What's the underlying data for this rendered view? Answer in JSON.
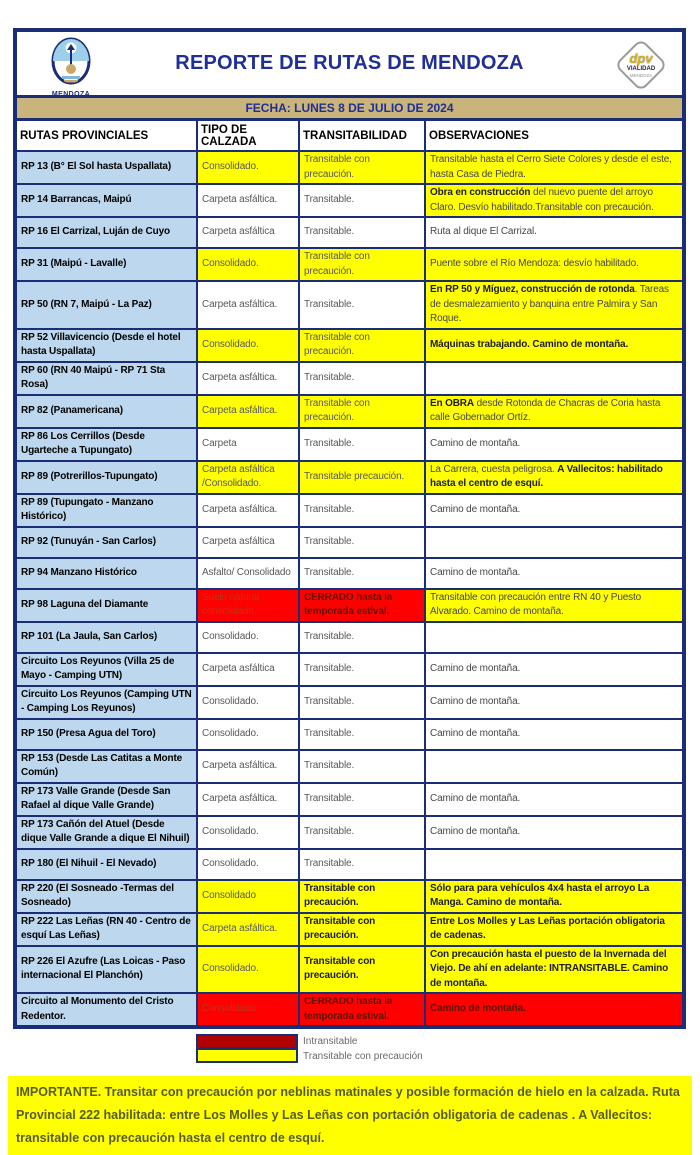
{
  "colors": {
    "navy": "#1C2D78",
    "titleblue": "#1F2F96",
    "tan": "#C9B47C",
    "cellblue": "#BDD7EE",
    "yellow": "#FFFF00",
    "red": "#FF0000",
    "legendred": "#B00000",
    "noticetext": "#565D1D"
  },
  "header": {
    "title": "REPORTE DE RUTAS DE MENDOZA",
    "left_logo_label": "MENDOZA",
    "right_logo": {
      "brand": "dpv",
      "line1": "VIALIDAD",
      "line2": "MENDOZA"
    }
  },
  "datebar": "FECHA: LUNES 8 DE JULIO DE 2024",
  "table": {
    "columns": [
      "RUTAS PROVINCIALES",
      "TIPO DE CALZADA",
      "TRANSITABILIDAD",
      "OBSERVACIONES"
    ],
    "rows": [
      {
        "name": "RP 13 (B° El Sol hasta Uspallata)",
        "calzada": {
          "bg": "y",
          "segs": [
            {
              "t": "Consolidado.",
              "b": false
            }
          ]
        },
        "transitabilidad": {
          "bg": "y",
          "segs": [
            {
              "t": "Transitable con precaución.",
              "b": false
            }
          ]
        },
        "observaciones": {
          "bg": "y",
          "segs": [
            {
              "t": "Transitable hasta el Cerro Siete Colores y desde el este, hasta Casa de Piedra.",
              "b": false
            }
          ]
        }
      },
      {
        "name": "RP 14 Barrancas, Maipú",
        "calzada": {
          "bg": "w",
          "segs": [
            {
              "t": "Carpeta asfáltica.",
              "b": false
            }
          ]
        },
        "transitabilidad": {
          "bg": "w",
          "segs": [
            {
              "t": "Transitable.",
              "b": false
            }
          ]
        },
        "observaciones": {
          "bg": "y",
          "segs": [
            {
              "t": "Obra en construcción",
              "b": true
            },
            {
              "t": " del nuevo puente del arroyo Claro. Desvío habilitado.Transitable con precaución.",
              "b": false
            }
          ]
        }
      },
      {
        "name": "RP 16 El Carrizal, Luján de Cuyo",
        "calzada": {
          "bg": "w",
          "segs": [
            {
              "t": "Carpeta asfáltica",
              "b": false
            }
          ]
        },
        "transitabilidad": {
          "bg": "w",
          "segs": [
            {
              "t": "Transitable.",
              "b": false
            }
          ]
        },
        "observaciones": {
          "bg": "w",
          "segs": [
            {
              "t": "Ruta al dique El Carrizal.",
              "b": false
            }
          ]
        }
      },
      {
        "name": "RP 31 (Maipú - Lavalle)",
        "calzada": {
          "bg": "y",
          "segs": [
            {
              "t": "Consolidado.",
              "b": false
            }
          ]
        },
        "transitabilidad": {
          "bg": "y",
          "segs": [
            {
              "t": "Transitable con precaución.",
              "b": false
            }
          ]
        },
        "observaciones": {
          "bg": "y",
          "segs": [
            {
              "t": "Puente sobre el Río Mendoza: desvío habilitado.",
              "b": false
            }
          ]
        }
      },
      {
        "name": "RP 50 (RN 7, Maipú - La Paz)",
        "calzada": {
          "bg": "w",
          "segs": [
            {
              "t": "Carpeta asfáltica.",
              "b": false
            }
          ]
        },
        "transitabilidad": {
          "bg": "w",
          "segs": [
            {
              "t": "Transitable.",
              "b": false
            }
          ]
        },
        "observaciones": {
          "bg": "y",
          "segs": [
            {
              "t": "En RP 50 y Míguez, construcción de rotonda",
              "b": true
            },
            {
              "t": ".  Tareas de desmalezamiento y banquina entre Palmira y San Roque.",
              "b": false
            }
          ]
        }
      },
      {
        "name": "RP 52 Villavicencio (Desde el hotel hasta Uspallata)",
        "calzada": {
          "bg": "y",
          "segs": [
            {
              "t": "Consolidado.",
              "b": false
            }
          ]
        },
        "transitabilidad": {
          "bg": "y",
          "segs": [
            {
              "t": "Transitable con precaución.",
              "b": false
            }
          ]
        },
        "observaciones": {
          "bg": "y",
          "segs": [
            {
              "t": "Máquinas trabajando. Camino de montaña.",
              "b": true
            }
          ]
        }
      },
      {
        "name": "RP 60 (RN 40 Maipú - RP 71 Sta Rosa)",
        "calzada": {
          "bg": "w",
          "segs": [
            {
              "t": "Carpeta asfáltica.",
              "b": false
            }
          ]
        },
        "transitabilidad": {
          "bg": "w",
          "segs": [
            {
              "t": "Transitable.",
              "b": false
            }
          ]
        },
        "observaciones": {
          "bg": "w",
          "segs": []
        }
      },
      {
        "name": "RP 82 (Panamericana)",
        "calzada": {
          "bg": "y",
          "segs": [
            {
              "t": "Carpeta asfáltica.",
              "b": false
            }
          ]
        },
        "transitabilidad": {
          "bg": "y",
          "segs": [
            {
              "t": "Transitable con precaución.",
              "b": false
            }
          ]
        },
        "observaciones": {
          "bg": "y",
          "segs": [
            {
              "t": "En OBRA",
              "b": true
            },
            {
              "t": " desde Rotonda de Chacras de Coria hasta calle Gobernador Ortíz.",
              "b": false
            }
          ]
        }
      },
      {
        "name": "RP 86 Los Cerrillos (Desde Ugarteche a Tupungato)",
        "calzada": {
          "bg": "w",
          "segs": [
            {
              "t": "Carpeta",
              "b": false
            }
          ]
        },
        "transitabilidad": {
          "bg": "w",
          "segs": [
            {
              "t": "Transitable.",
              "b": false
            }
          ]
        },
        "observaciones": {
          "bg": "w",
          "segs": [
            {
              "t": "Camino de montaña.",
              "b": false
            }
          ]
        }
      },
      {
        "name": "RP 89 (Potrerillos-Tupungato)",
        "calzada": {
          "bg": "y",
          "segs": [
            {
              "t": "Carpeta asfáltica /Consolidado.",
              "b": false
            }
          ]
        },
        "transitabilidad": {
          "bg": "y",
          "segs": [
            {
              "t": "Transitable precaución.",
              "b": false
            }
          ]
        },
        "observaciones": {
          "bg": "y",
          "segs": [
            {
              "t": "La Carrera, cuesta peligrosa. ",
              "b": false
            },
            {
              "t": "A Vallecitos: habilitado hasta el centro de esquí.",
              "b": true
            }
          ]
        }
      },
      {
        "name": "RP 89 (Tupungato - Manzano Histórico)",
        "calzada": {
          "bg": "w",
          "segs": [
            {
              "t": "Carpeta asfáltica.",
              "b": false
            }
          ]
        },
        "transitabilidad": {
          "bg": "w",
          "segs": [
            {
              "t": "Transitable.",
              "b": false
            }
          ]
        },
        "observaciones": {
          "bg": "w",
          "segs": [
            {
              "t": "Camino de montaña.",
              "b": false
            }
          ]
        }
      },
      {
        "name": "RP 92 (Tunuyán - San Carlos)",
        "calzada": {
          "bg": "w",
          "segs": [
            {
              "t": "Carpeta asfáltica",
              "b": false
            }
          ]
        },
        "transitabilidad": {
          "bg": "w",
          "segs": [
            {
              "t": "Transitable.",
              "b": false
            }
          ]
        },
        "observaciones": {
          "bg": "w",
          "segs": []
        }
      },
      {
        "name": "RP 94 Manzano Histórico",
        "calzada": {
          "bg": "w",
          "segs": [
            {
              "t": "Asfalto/ Consolidado",
              "b": false
            }
          ]
        },
        "transitabilidad": {
          "bg": "w",
          "segs": [
            {
              "t": "Transitable.",
              "b": false
            }
          ]
        },
        "observaciones": {
          "bg": "w",
          "segs": [
            {
              "t": "Camino de montaña.",
              "b": false
            }
          ]
        }
      },
      {
        "name": "RP 98 Laguna del Diamante",
        "calzada": {
          "bg": "r",
          "segs": [
            {
              "t": "Suelo natural consolidado.",
              "b": false
            }
          ]
        },
        "transitabilidad": {
          "bg": "r",
          "segs": [
            {
              "t": "CERRADO hasta la temporada estival.",
              "b": true
            }
          ]
        },
        "observaciones": {
          "bg": "y",
          "segs": [
            {
              "t": "Transitable con precaución entre RN 40 y Puesto Alvarado. Camino de montaña.",
              "b": false
            }
          ]
        }
      },
      {
        "name": "RP 101 (La Jaula, San Carlos)",
        "calzada": {
          "bg": "w",
          "segs": [
            {
              "t": "Consolidado.",
              "b": false
            }
          ]
        },
        "transitabilidad": {
          "bg": "w",
          "segs": [
            {
              "t": "Transitable.",
              "b": false
            }
          ]
        },
        "observaciones": {
          "bg": "w",
          "segs": []
        }
      },
      {
        "name": "Circuito Los Reyunos (Villa 25 de Mayo - Camping UTN)",
        "calzada": {
          "bg": "w",
          "segs": [
            {
              "t": "Carpeta asfáltica",
              "b": false
            }
          ]
        },
        "transitabilidad": {
          "bg": "w",
          "segs": [
            {
              "t": "Transitable.",
              "b": false
            }
          ]
        },
        "observaciones": {
          "bg": "w",
          "segs": [
            {
              "t": "Camino de montaña.",
              "b": false
            }
          ]
        }
      },
      {
        "name": "Circuito Los Reyunos (Camping UTN - Camping Los Reyunos)",
        "calzada": {
          "bg": "w",
          "segs": [
            {
              "t": "Consolidado.",
              "b": false
            }
          ]
        },
        "transitabilidad": {
          "bg": "w",
          "segs": [
            {
              "t": "Transitable.",
              "b": false
            }
          ]
        },
        "observaciones": {
          "bg": "w",
          "segs": [
            {
              "t": "Camino de montaña.",
              "b": false
            }
          ]
        }
      },
      {
        "name": "RP 150 (Presa Agua del Toro)",
        "calzada": {
          "bg": "w",
          "segs": [
            {
              "t": "Consolidado.",
              "b": false
            }
          ]
        },
        "transitabilidad": {
          "bg": "w",
          "segs": [
            {
              "t": "Transitable.",
              "b": false
            }
          ]
        },
        "observaciones": {
          "bg": "w",
          "segs": [
            {
              "t": "Camino de montaña.",
              "b": false
            }
          ]
        }
      },
      {
        "name": "RP 153 (Desde Las Catitas a Monte Común)",
        "calzada": {
          "bg": "w",
          "segs": [
            {
              "t": "Carpeta asfáltica.",
              "b": false
            }
          ]
        },
        "transitabilidad": {
          "bg": "w",
          "segs": [
            {
              "t": "Transitable.",
              "b": false
            }
          ]
        },
        "observaciones": {
          "bg": "w",
          "segs": []
        }
      },
      {
        "name": "RP 173  Valle Grande (Desde San Rafael al dique Valle Grande)",
        "calzada": {
          "bg": "w",
          "segs": [
            {
              "t": "Carpeta asfáltica.",
              "b": false
            }
          ]
        },
        "transitabilidad": {
          "bg": "w",
          "segs": [
            {
              "t": "Transitable.",
              "b": false
            }
          ]
        },
        "observaciones": {
          "bg": "w",
          "segs": [
            {
              "t": "Camino de montaña.",
              "b": false
            }
          ]
        }
      },
      {
        "name": "RP 173 Cañón del Atuel (Desde dique Valle Grande a dique El Nihuil)",
        "calzada": {
          "bg": "w",
          "segs": [
            {
              "t": "Consolidado.",
              "b": false
            }
          ]
        },
        "transitabilidad": {
          "bg": "w",
          "segs": [
            {
              "t": "Transitable.",
              "b": false
            }
          ]
        },
        "observaciones": {
          "bg": "w",
          "segs": [
            {
              "t": "Camino de montaña.",
              "b": false
            }
          ]
        }
      },
      {
        "name": "RP 180 (El Nihuil - El Nevado)",
        "calzada": {
          "bg": "w",
          "segs": [
            {
              "t": "Consolidado.",
              "b": false
            }
          ]
        },
        "transitabilidad": {
          "bg": "w",
          "segs": [
            {
              "t": "Transitable.",
              "b": false
            }
          ]
        },
        "observaciones": {
          "bg": "w",
          "segs": []
        }
      },
      {
        "name": "RP 220 (El Sosneado -Termas del Sosneado)",
        "calzada": {
          "bg": "y",
          "segs": [
            {
              "t": "Consolidado",
              "b": false
            }
          ]
        },
        "transitabilidad": {
          "bg": "y",
          "segs": [
            {
              "t": "Transitable con precaución.",
              "b": true
            }
          ]
        },
        "observaciones": {
          "bg": "y",
          "segs": [
            {
              "t": "Sólo para para vehículos 4x4 hasta el arroyo La Manga. Camino de montaña.",
              "b": true
            }
          ]
        }
      },
      {
        "name": "RP 222 Las Leñas (RN 40 - Centro de esquí Las Leñas)",
        "calzada": {
          "bg": "y",
          "segs": [
            {
              "t": "Carpeta asfáltica.",
              "b": false
            }
          ]
        },
        "transitabilidad": {
          "bg": "y",
          "segs": [
            {
              "t": "Transitable con precaución.",
              "b": true
            }
          ]
        },
        "observaciones": {
          "bg": "y",
          "segs": [
            {
              "t": "Entre Los Molles y Las Leñas portación obligatoria de cadenas.",
              "b": true
            }
          ]
        }
      },
      {
        "name": "RP 226 El Azufre (Las Loicas - Paso internacional El Planchón)",
        "calzada": {
          "bg": "y",
          "segs": [
            {
              "t": "Consolidado.",
              "b": false
            }
          ]
        },
        "transitabilidad": {
          "bg": "y",
          "segs": [
            {
              "t": "Transitable con precaución.",
              "b": true
            }
          ]
        },
        "observaciones": {
          "bg": "y",
          "segs": [
            {
              "t": "Con precaución hasta el puesto de la Invernada del Viejo. De ahí en adelante: INTRANSITABLE. Camino de montaña.",
              "b": true
            }
          ]
        }
      },
      {
        "name": "Circuito al Monumento del Cristo Redentor.",
        "calzada": {
          "bg": "r",
          "segs": [
            {
              "t": "Consolidado.",
              "b": false
            }
          ]
        },
        "transitabilidad": {
          "bg": "r",
          "segs": [
            {
              "t": "CERRADO hasta la temporada estival.",
              "b": true
            }
          ]
        },
        "observaciones": {
          "bg": "r",
          "segs": [
            {
              "t": "Camino de montaña.",
              "b": true
            }
          ]
        }
      }
    ]
  },
  "legend": {
    "items": [
      {
        "color": "red",
        "label": "Intransitable"
      },
      {
        "color": "yellow",
        "label": "Transitable con precaución"
      }
    ]
  },
  "notice": "IMPORTANTE. Transitar con precaución por neblinas matinales y posible formación de hielo en la calzada.  Ruta Provincial 222 habilitada: entre Los Molles y Las Leñas con portación obligatoria de cadenas . A Vallecitos: transitable con precaución hasta el centro de esquí."
}
